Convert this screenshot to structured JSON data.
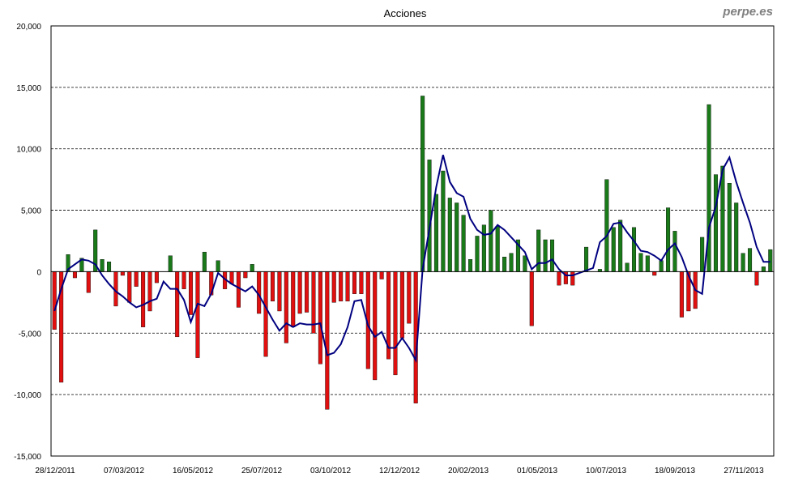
{
  "watermark": "perpe.es",
  "chart_data": {
    "type": "bar",
    "title": "Acciones",
    "xlabel": "",
    "ylabel": "",
    "ylim": [
      -15000,
      20000
    ],
    "yticks": [
      20000,
      15000,
      10000,
      5000,
      0,
      -5000,
      -10000,
      -15000
    ],
    "ytick_labels": [
      "20,000",
      "15,000",
      "10,000",
      "5,000",
      "0",
      "-5,000",
      "-10,000",
      "-15,000"
    ],
    "xtick_labels": [
      "28/12/2011",
      "07/03/2012",
      "16/05/2012",
      "25/07/2012",
      "03/10/2012",
      "12/12/2012",
      "20/02/2013",
      "01/05/2013",
      "10/07/2013",
      "18/09/2013",
      "27/11/2013"
    ],
    "grid": "horizontal dashed",
    "positive_color": "#1a7a1a",
    "negative_color": "#e01010",
    "line_color": "#000080",
    "series": [
      {
        "kind": "bar",
        "values": [
          -4700,
          -9000,
          1400,
          -500,
          1100,
          -1700,
          3400,
          1000,
          800,
          -2800,
          -300,
          -2500,
          -1200,
          -4500,
          -3200,
          -900,
          0,
          1300,
          -5300,
          -1400,
          -3500,
          -7000,
          1600,
          -1900,
          900,
          -1400,
          -1000,
          -2900,
          -500,
          600,
          -3400,
          -6900,
          -2400,
          -3200,
          -5800,
          -4500,
          -3400,
          -3300,
          -5000,
          -7500,
          -11200,
          -2500,
          -2400,
          -2400,
          -1800,
          -1800,
          -7900,
          -8800,
          -600,
          -7100,
          -8400,
          -5400,
          -4200,
          -10700,
          14300,
          9100,
          6300,
          8200,
          6000,
          5600,
          4600,
          1000,
          2900,
          3800,
          5000,
          3700,
          1200,
          1500,
          2600,
          1300,
          -4400,
          3400,
          2600,
          2600,
          -1100,
          -1000,
          -1100,
          0,
          2000,
          0,
          200,
          7500,
          3600,
          4200,
          700,
          3600,
          1500,
          1300,
          -300,
          900,
          5200,
          3300,
          -3700,
          -3200,
          -3000,
          2800,
          13600,
          7900,
          8600,
          7200,
          5600,
          1500,
          1900,
          -1100,
          400,
          1800
        ]
      },
      {
        "kind": "line",
        "values": [
          -3200,
          -1400,
          200,
          600,
          1000,
          900,
          600,
          -300,
          -1000,
          -1600,
          -2000,
          -2500,
          -2900,
          -2700,
          -2400,
          -2200,
          -800,
          -1400,
          -1400,
          -2300,
          -4100,
          -2600,
          -2800,
          -1800,
          -100,
          -600,
          -1000,
          -1300,
          -1600,
          -1200,
          -1900,
          -2900,
          -3900,
          -4800,
          -4200,
          -4500,
          -4200,
          -4300,
          -4300,
          -4200,
          -6800,
          -6600,
          -5900,
          -4500,
          -2400,
          -2300,
          -4400,
          -5300,
          -4900,
          -6200,
          -6200,
          -5400,
          -6200,
          -7200,
          200,
          3500,
          6900,
          9500,
          7300,
          6400,
          6100,
          4300,
          3400,
          3000,
          3100,
          3800,
          3400,
          2800,
          2200,
          1600,
          200,
          700,
          700,
          1000,
          200,
          -300,
          -300,
          -100,
          100,
          300,
          2400,
          2900,
          3900,
          4000,
          3200,
          2500,
          1700,
          1600,
          1300,
          900,
          1800,
          2300,
          1200,
          -300,
          -1500,
          -1800,
          3600,
          5300,
          8300,
          9300,
          7300,
          5600,
          4000,
          2000,
          800,
          800
        ]
      }
    ]
  }
}
